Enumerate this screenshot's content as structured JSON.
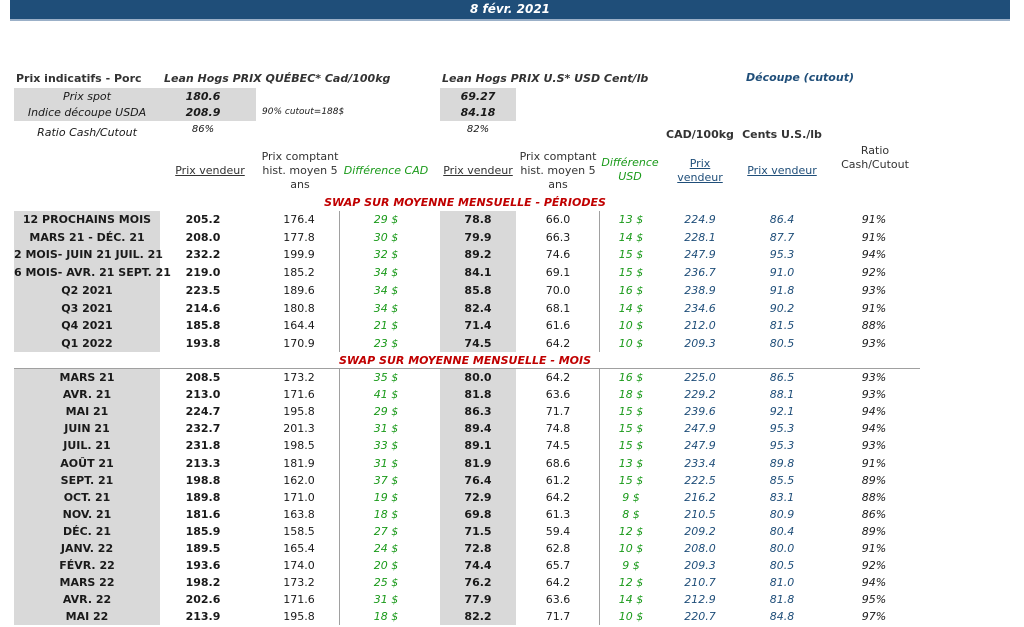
{
  "banner": {
    "date": "8 févr. 2021"
  },
  "info": {
    "label_porc": "Prix indicatifs - Porc",
    "title_quebec": "Lean Hogs PRIX QUÉBEC* Cad/100kg",
    "title_us": "Lean Hogs PRIX U.S* USD Cent/lb",
    "title_cutout": "Découpe (cutout)",
    "spot_label": "Prix spot",
    "spot_qc": "180.6",
    "spot_us": "69.27",
    "usda_label": "Indice découpe USDA",
    "usda_qc": "208.9",
    "usda_note": "90% cutout=188$",
    "usda_us": "84.18",
    "ratio_label": "Ratio Cash/Cutout",
    "ratio_qc": "86%",
    "ratio_us": "82%"
  },
  "headers": {
    "cad100": "CAD/100kg",
    "cents": "Cents U.S./lb",
    "prix_vendeur": "Prix vendeur",
    "prix_comptant": "Prix comptant hist. moyen 5 ans",
    "diff_cad": "Différence CAD",
    "prix_vendeur_us": "Prix vendeur",
    "prix_comptant_us": "Prix comptant hist. moyen 5 ans",
    "diff_usd": "Différence USD",
    "prix_vendeur_cut": "Prix vendeur",
    "prix_vendeur_cents": "Prix vendeur",
    "ratio": "Ratio Cash/Cutout"
  },
  "sections": {
    "periodes": "SWAP SUR MOYENNE MENSUELLE - PÉRIODES",
    "mois": "SWAP SUR MOYENNE MENSUELLE - MOIS"
  },
  "periodes": [
    [
      "12 PROCHAINS MOIS",
      "205.2",
      "176.4",
      "29 $",
      "78.8",
      "66.0",
      "13 $",
      "224.9",
      "86.4",
      "91%"
    ],
    [
      "MARS 21 -  DÉC. 21",
      "208.0",
      "177.8",
      "30 $",
      "79.9",
      "66.3",
      "14 $",
      "228.1",
      "87.7",
      "91%"
    ],
    [
      "2 MOIS- JUIN 21 JUIL. 21",
      "232.2",
      "199.9",
      "32 $",
      "89.2",
      "74.6",
      "15 $",
      "247.9",
      "95.3",
      "94%"
    ],
    [
      "6 MOIS- AVR. 21 SEPT. 21",
      "219.0",
      "185.2",
      "34 $",
      "84.1",
      "69.1",
      "15 $",
      "236.7",
      "91.0",
      "92%"
    ],
    [
      "Q2 2021",
      "223.5",
      "189.6",
      "34 $",
      "85.8",
      "70.0",
      "16 $",
      "238.9",
      "91.8",
      "93%"
    ],
    [
      "Q3 2021",
      "214.6",
      "180.8",
      "34 $",
      "82.4",
      "68.1",
      "14 $",
      "234.6",
      "90.2",
      "91%"
    ],
    [
      "Q4 2021",
      "185.8",
      "164.4",
      "21 $",
      "71.4",
      "61.6",
      "10 $",
      "212.0",
      "81.5",
      "88%"
    ],
    [
      "Q1 2022",
      "193.8",
      "170.9",
      "23 $",
      "74.5",
      "64.2",
      "10 $",
      "209.3",
      "80.5",
      "93%"
    ]
  ],
  "mois": [
    [
      "MARS 21",
      "208.5",
      "173.2",
      "35 $",
      "80.0",
      "64.2",
      "16 $",
      "225.0",
      "86.5",
      "93%"
    ],
    [
      "AVR. 21",
      "213.0",
      "171.6",
      "41 $",
      "81.8",
      "63.6",
      "18 $",
      "229.2",
      "88.1",
      "93%"
    ],
    [
      "MAI 21",
      "224.7",
      "195.8",
      "29 $",
      "86.3",
      "71.7",
      "15 $",
      "239.6",
      "92.1",
      "94%"
    ],
    [
      "JUIN 21",
      "232.7",
      "201.3",
      "31 $",
      "89.4",
      "74.8",
      "15 $",
      "247.9",
      "95.3",
      "94%"
    ],
    [
      "JUIL. 21",
      "231.8",
      "198.5",
      "33 $",
      "89.1",
      "74.5",
      "15 $",
      "247.9",
      "95.3",
      "93%"
    ],
    [
      "AOÛT 21",
      "213.3",
      "181.9",
      "31 $",
      "81.9",
      "68.6",
      "13 $",
      "233.4",
      "89.8",
      "91%"
    ],
    [
      "SEPT. 21",
      "198.8",
      "162.0",
      "37 $",
      "76.4",
      "61.2",
      "15 $",
      "222.5",
      "85.5",
      "89%"
    ],
    [
      "OCT. 21",
      "189.8",
      "171.0",
      "19 $",
      "72.9",
      "64.2",
      "9 $",
      "216.2",
      "83.1",
      "88%"
    ],
    [
      "NOV. 21",
      "181.6",
      "163.8",
      "18 $",
      "69.8",
      "61.3",
      "8 $",
      "210.5",
      "80.9",
      "86%"
    ],
    [
      "DÉC. 21",
      "185.9",
      "158.5",
      "27 $",
      "71.5",
      "59.4",
      "12 $",
      "209.2",
      "80.4",
      "89%"
    ],
    [
      "JANV. 22",
      "189.5",
      "165.4",
      "24 $",
      "72.8",
      "62.8",
      "10 $",
      "208.0",
      "80.0",
      "91%"
    ],
    [
      "FÉVR. 22",
      "193.6",
      "174.0",
      "20 $",
      "74.4",
      "65.7",
      "9 $",
      "209.3",
      "80.5",
      "92%"
    ],
    [
      "MARS 22",
      "198.2",
      "173.2",
      "25 $",
      "76.2",
      "64.2",
      "12 $",
      "210.7",
      "81.0",
      "94%"
    ],
    [
      "AVR. 22",
      "202.6",
      "171.6",
      "31 $",
      "77.9",
      "63.6",
      "14 $",
      "212.9",
      "81.8",
      "95%"
    ],
    [
      "MAI 22",
      "213.9",
      "195.8",
      "18 $",
      "82.2",
      "71.7",
      "10 $",
      "220.7",
      "84.8",
      "97%"
    ]
  ],
  "colors": {
    "banner": "#1f4e79",
    "red": "#c00000",
    "green": "#1a9a1a",
    "blue": "#1f4e79"
  }
}
